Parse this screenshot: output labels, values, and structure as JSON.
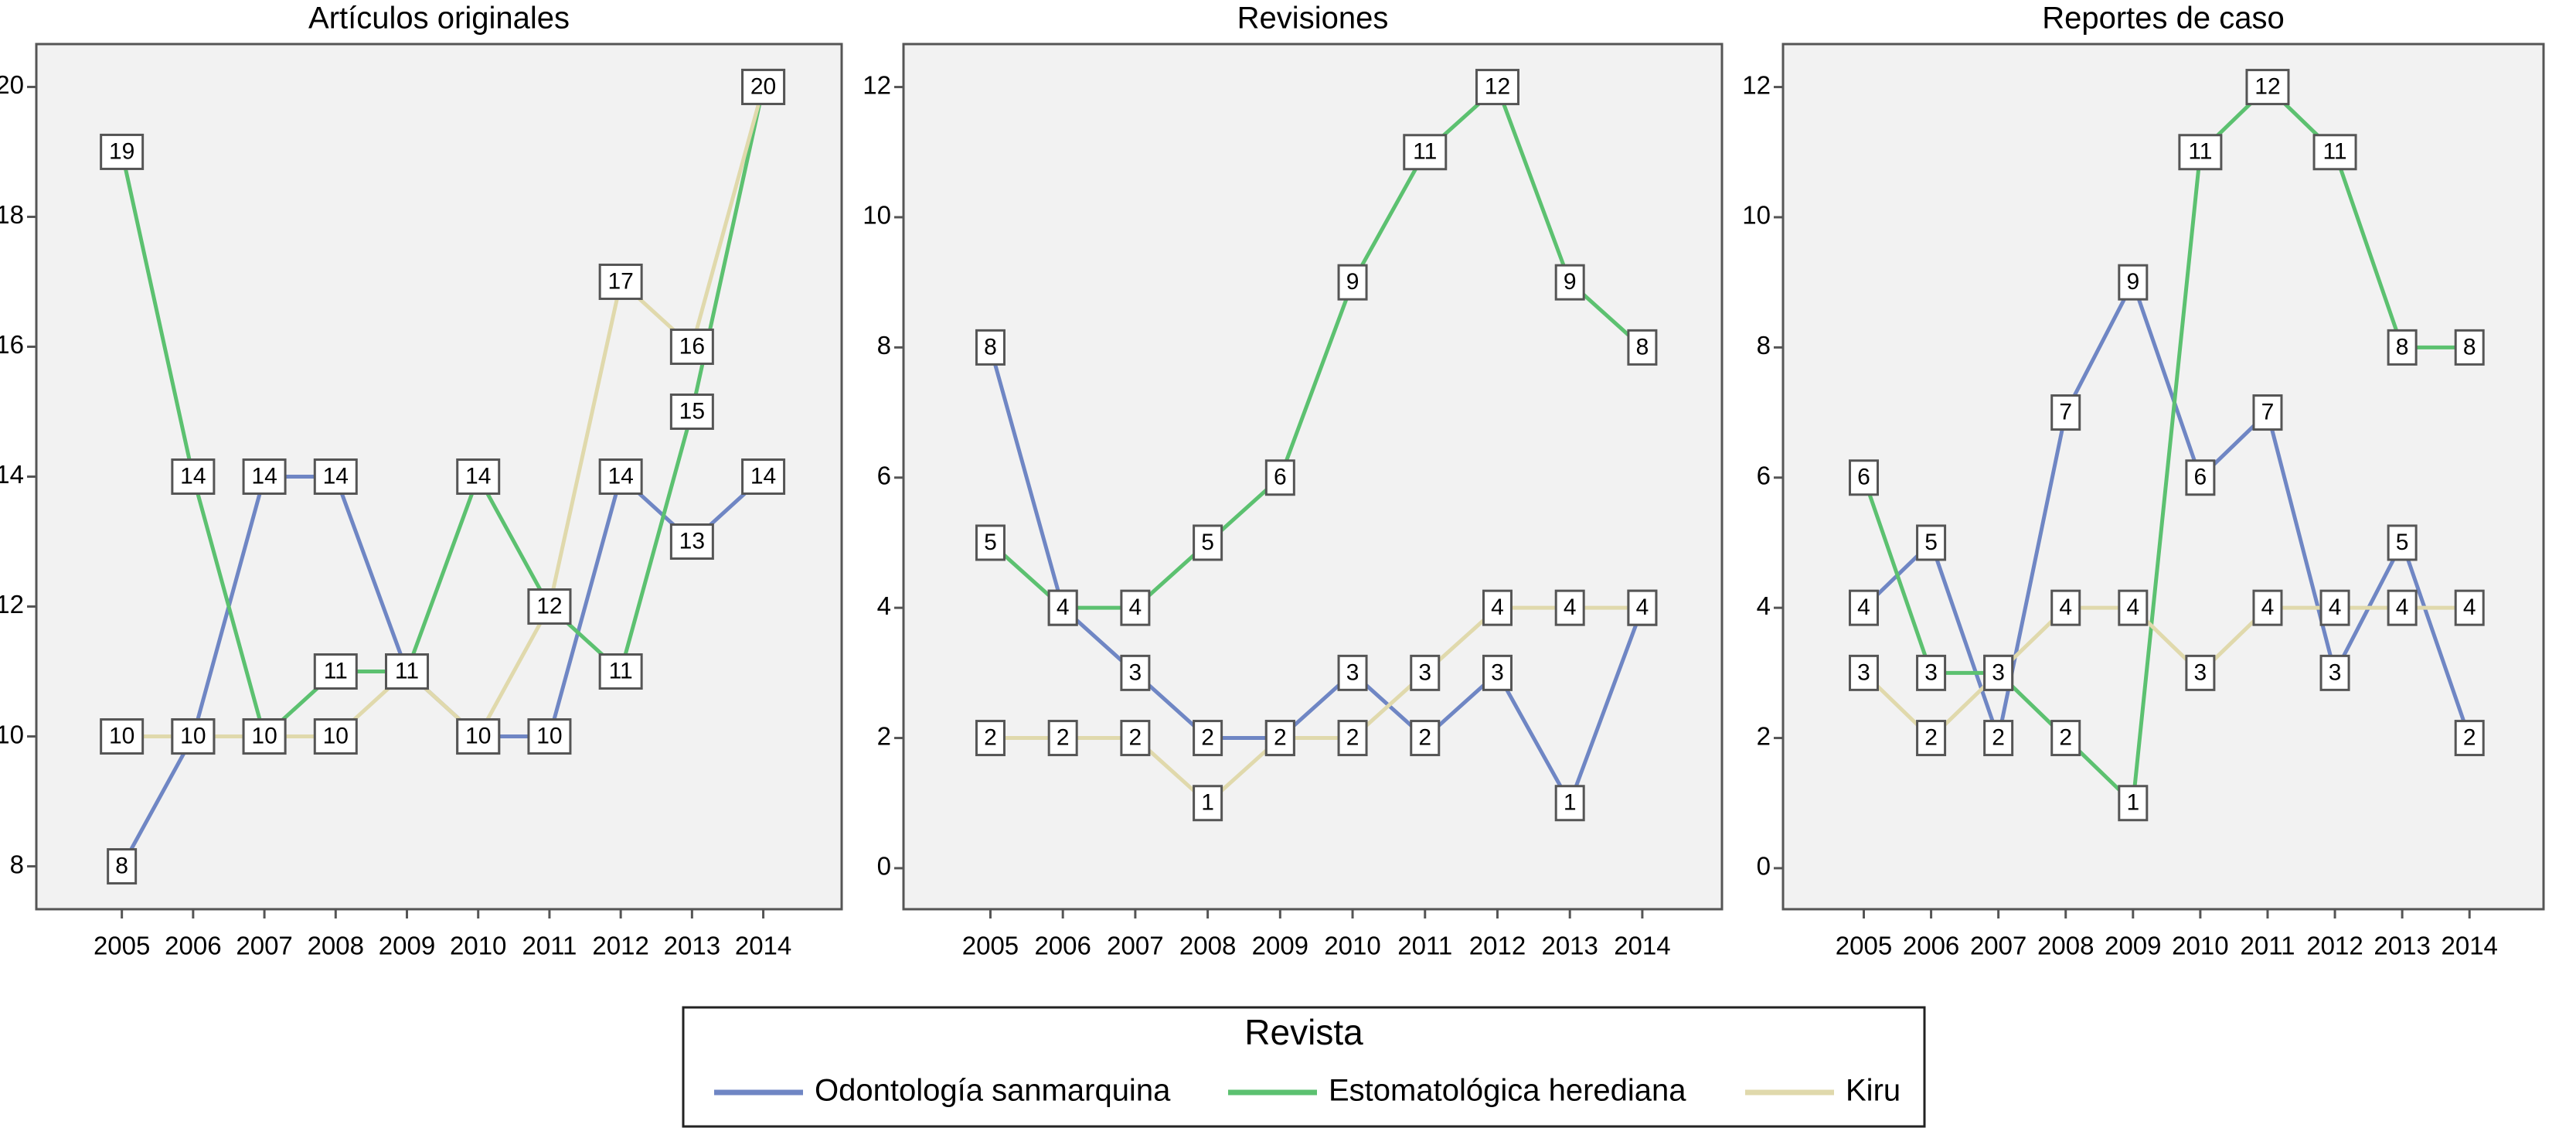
{
  "chart_data": [
    {
      "type": "line",
      "title": "Artículos originales",
      "categories": [
        "2005",
        "2006",
        "2007",
        "2008",
        "2009",
        "2010",
        "2011",
        "2012",
        "2013",
        "2014"
      ],
      "ylim": [
        7.34,
        20.66
      ],
      "yticks": [
        8,
        10,
        12,
        14,
        16,
        18,
        20
      ],
      "legend_title": "Revista",
      "series": [
        {
          "name": "Odontología sanmarquina",
          "color": "#6f86c4",
          "values": [
            8,
            10,
            14,
            14,
            11,
            10,
            10,
            14,
            13,
            14
          ]
        },
        {
          "name": "Estomatológica herediana",
          "color": "#5cc170",
          "values": [
            19,
            14,
            10,
            11,
            11,
            14,
            12,
            11,
            15,
            20
          ]
        },
        {
          "name": "Kiru",
          "color": "#e0d9ac",
          "values": [
            10,
            10,
            10,
            10,
            11,
            10,
            12,
            17,
            16,
            20
          ]
        }
      ]
    },
    {
      "type": "line",
      "title": "Revisiones",
      "categories": [
        "2005",
        "2006",
        "2007",
        "2008",
        "2009",
        "2010",
        "2011",
        "2012",
        "2013",
        "2014"
      ],
      "ylim": [
        -0.63,
        12.66
      ],
      "yticks": [
        0,
        2,
        4,
        6,
        8,
        10,
        12
      ],
      "series": [
        {
          "name": "Odontología sanmarquina",
          "color": "#6f86c4",
          "values": [
            8,
            4,
            3,
            2,
            2,
            3,
            2,
            3,
            1,
            4
          ]
        },
        {
          "name": "Estomatológica herediana",
          "color": "#5cc170",
          "values": [
            5,
            4,
            4,
            5,
            6,
            9,
            11,
            12,
            9,
            8
          ]
        },
        {
          "name": "Kiru",
          "color": "#e0d9ac",
          "values": [
            2,
            2,
            2,
            1,
            2,
            2,
            3,
            4,
            4,
            4
          ]
        }
      ]
    },
    {
      "type": "line",
      "title": "Reportes de caso",
      "categories": [
        "2005",
        "2006",
        "2007",
        "2008",
        "2009",
        "2010",
        "2011",
        "2012",
        "2013",
        "2014"
      ],
      "ylim": [
        -0.63,
        12.66
      ],
      "yticks": [
        0,
        2,
        4,
        6,
        8,
        10,
        12
      ],
      "series": [
        {
          "name": "Odontología sanmarquina",
          "color": "#6f86c4",
          "values": [
            4,
            5,
            2,
            7,
            9,
            6,
            7,
            3,
            5,
            2
          ]
        },
        {
          "name": "Estomatológica herediana",
          "color": "#5cc170",
          "values": [
            6,
            3,
            3,
            2,
            1,
            11,
            12,
            11,
            8,
            8
          ]
        },
        {
          "name": "Kiru",
          "color": "#e0d9ac",
          "values": [
            3,
            2,
            3,
            4,
            4,
            3,
            4,
            4,
            4,
            4
          ]
        }
      ]
    }
  ]
}
